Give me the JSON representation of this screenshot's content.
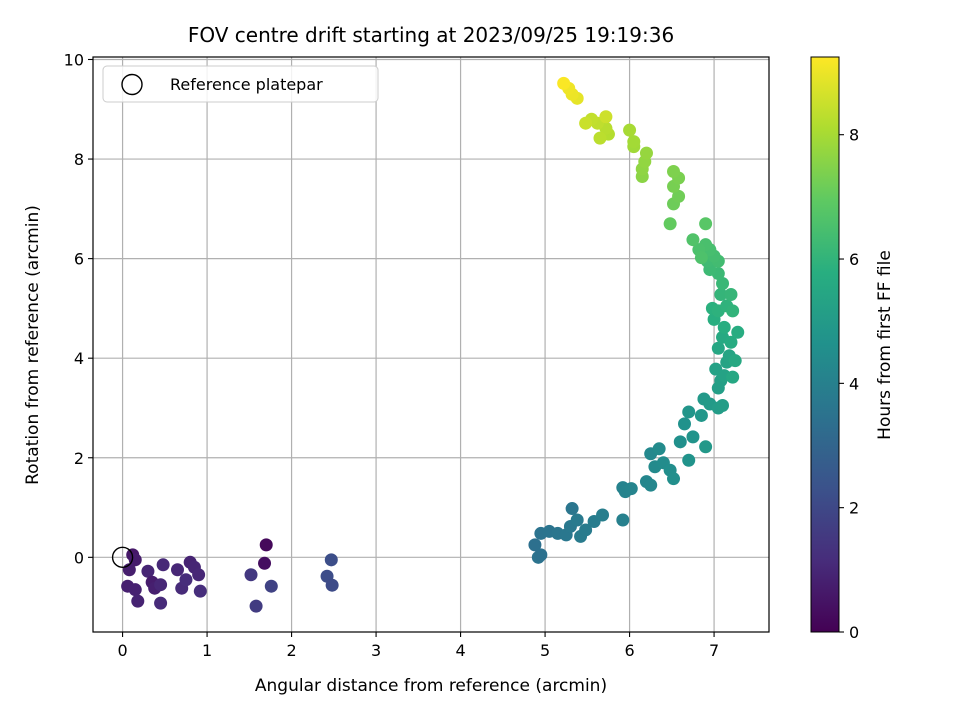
{
  "chart_data": {
    "type": "scatter",
    "title": "FOV centre drift starting at 2023/09/25 19:19:36",
    "xlabel": "Angular distance from reference (arcmin)",
    "ylabel": "Rotation from reference (arcmin)",
    "xlim": [
      -0.35,
      7.65
    ],
    "ylim": [
      -1.5,
      10.05
    ],
    "xticks": [
      0,
      1,
      2,
      3,
      4,
      5,
      6,
      7
    ],
    "yticks": [
      0,
      2,
      4,
      6,
      8,
      10
    ],
    "grid": true,
    "legend": {
      "placement": "top-left",
      "entries": [
        "Reference platepar"
      ]
    },
    "reference": {
      "x": 0,
      "y": 0,
      "label": "Reference platepar"
    },
    "colorbar": {
      "label": "Hours from first FF file",
      "colormap": "viridis",
      "range": [
        0,
        9.25
      ],
      "ticks": [
        0,
        2,
        4,
        6,
        8
      ]
    },
    "points": [
      [
        0.12,
        0.05,
        0.6
      ],
      [
        0.15,
        -0.05,
        0.7
      ],
      [
        0.08,
        -0.25,
        0.75
      ],
      [
        0.06,
        -0.58,
        0.8
      ],
      [
        0.15,
        -0.65,
        0.85
      ],
      [
        0.18,
        -0.88,
        0.9
      ],
      [
        0.3,
        -0.28,
        0.95
      ],
      [
        0.35,
        -0.5,
        0.7
      ],
      [
        0.38,
        -0.62,
        0.8
      ],
      [
        0.45,
        -0.55,
        1.0
      ],
      [
        0.48,
        -0.15,
        1.05
      ],
      [
        0.45,
        -0.92,
        1.1
      ],
      [
        0.65,
        -0.25,
        1.0
      ],
      [
        0.7,
        -0.62,
        1.1
      ],
      [
        0.75,
        -0.45,
        1.15
      ],
      [
        0.8,
        -0.1,
        0.9
      ],
      [
        0.85,
        -0.2,
        0.95
      ],
      [
        0.9,
        -0.35,
        1.0
      ],
      [
        0.92,
        -0.68,
        1.2
      ],
      [
        1.7,
        0.25,
        0.2
      ],
      [
        1.68,
        -0.12,
        0.35
      ],
      [
        1.52,
        -0.35,
        1.5
      ],
      [
        1.58,
        -0.98,
        1.6
      ],
      [
        1.76,
        -0.58,
        1.8
      ],
      [
        2.47,
        -0.05,
        2.2
      ],
      [
        2.42,
        -0.38,
        2.15
      ],
      [
        2.48,
        -0.56,
        2.1
      ],
      [
        4.88,
        0.25,
        3.4
      ],
      [
        4.92,
        0.0,
        3.5
      ],
      [
        4.95,
        0.05,
        3.45
      ],
      [
        4.95,
        0.48,
        3.5
      ],
      [
        5.05,
        0.52,
        3.55
      ],
      [
        5.15,
        0.48,
        3.6
      ],
      [
        5.25,
        0.45,
        3.65
      ],
      [
        5.3,
        0.62,
        3.7
      ],
      [
        5.32,
        0.98,
        3.6
      ],
      [
        5.38,
        0.75,
        3.75
      ],
      [
        5.42,
        0.42,
        3.8
      ],
      [
        5.48,
        0.55,
        3.8
      ],
      [
        5.58,
        0.72,
        3.85
      ],
      [
        5.68,
        0.85,
        3.9
      ],
      [
        5.92,
        0.75,
        4.0
      ],
      [
        5.92,
        1.4,
        4.05
      ],
      [
        5.95,
        1.32,
        4.1
      ],
      [
        6.02,
        1.38,
        4.15
      ],
      [
        6.2,
        1.52,
        4.2
      ],
      [
        6.25,
        1.45,
        4.25
      ],
      [
        6.25,
        2.08,
        4.3
      ],
      [
        6.3,
        1.82,
        4.35
      ],
      [
        6.35,
        2.18,
        4.4
      ],
      [
        6.4,
        1.9,
        4.45
      ],
      [
        6.48,
        1.75,
        4.5
      ],
      [
        6.52,
        1.58,
        4.55
      ],
      [
        6.6,
        2.32,
        4.6
      ],
      [
        6.65,
        2.68,
        4.65
      ],
      [
        6.7,
        1.95,
        4.7
      ],
      [
        6.75,
        2.42,
        4.75
      ],
      [
        6.7,
        2.92,
        4.8
      ],
      [
        6.85,
        2.85,
        4.85
      ],
      [
        6.9,
        2.22,
        4.9
      ],
      [
        6.88,
        3.18,
        4.95
      ],
      [
        6.95,
        3.08,
        5.0
      ],
      [
        7.05,
        3.0,
        5.05
      ],
      [
        7.1,
        3.05,
        5.1
      ],
      [
        7.05,
        3.4,
        5.15
      ],
      [
        7.08,
        3.55,
        5.2
      ],
      [
        7.02,
        3.78,
        5.25
      ],
      [
        7.12,
        3.65,
        5.3
      ],
      [
        7.15,
        3.92,
        5.35
      ],
      [
        7.18,
        4.05,
        5.4
      ],
      [
        7.05,
        4.2,
        5.45
      ],
      [
        7.22,
        3.62,
        5.5
      ],
      [
        7.25,
        3.95,
        5.55
      ],
      [
        7.1,
        4.42,
        5.6
      ],
      [
        7.2,
        4.32,
        5.65
      ],
      [
        7.28,
        4.52,
        5.7
      ],
      [
        7.12,
        4.62,
        5.75
      ],
      [
        7.0,
        4.78,
        5.8
      ],
      [
        6.98,
        5.0,
        5.85
      ],
      [
        7.05,
        4.95,
        5.9
      ],
      [
        7.15,
        5.05,
        5.95
      ],
      [
        7.22,
        4.95,
        6.0
      ],
      [
        7.08,
        5.28,
        6.05
      ],
      [
        7.2,
        5.28,
        6.1
      ],
      [
        7.1,
        5.5,
        6.15
      ],
      [
        7.05,
        5.7,
        6.2
      ],
      [
        6.95,
        5.78,
        6.25
      ],
      [
        6.92,
        5.95,
        6.3
      ],
      [
        7.05,
        5.95,
        6.35
      ],
      [
        7.0,
        6.05,
        6.4
      ],
      [
        6.95,
        6.18,
        6.45
      ],
      [
        6.9,
        6.28,
        6.5
      ],
      [
        6.82,
        6.18,
        6.55
      ],
      [
        6.85,
        6.02,
        6.6
      ],
      [
        6.75,
        6.38,
        6.65
      ],
      [
        6.9,
        6.7,
        6.8
      ],
      [
        6.48,
        6.7,
        7.0
      ],
      [
        6.52,
        7.1,
        7.15
      ],
      [
        6.58,
        7.25,
        7.2
      ],
      [
        6.52,
        7.45,
        7.3
      ],
      [
        6.58,
        7.62,
        7.35
      ],
      [
        6.52,
        7.75,
        7.4
      ],
      [
        6.15,
        7.65,
        7.6
      ],
      [
        6.15,
        7.8,
        7.65
      ],
      [
        6.18,
        7.95,
        7.7
      ],
      [
        6.2,
        8.12,
        7.75
      ],
      [
        6.05,
        8.25,
        7.9
      ],
      [
        6.05,
        8.35,
        7.95
      ],
      [
        6.0,
        8.58,
        8.0
      ],
      [
        5.75,
        8.5,
        8.2
      ],
      [
        5.72,
        8.62,
        8.25
      ],
      [
        5.65,
        8.42,
        8.3
      ],
      [
        5.62,
        8.72,
        8.35
      ],
      [
        5.55,
        8.8,
        8.4
      ],
      [
        5.48,
        8.72,
        8.5
      ],
      [
        5.72,
        8.85,
        8.55
      ],
      [
        5.38,
        9.22,
        8.9
      ],
      [
        5.32,
        9.3,
        9.0
      ],
      [
        5.28,
        9.42,
        9.05
      ],
      [
        5.22,
        9.52,
        9.2
      ]
    ]
  }
}
